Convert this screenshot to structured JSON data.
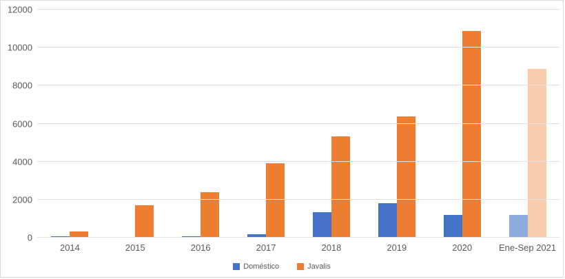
{
  "chart_data": {
    "type": "bar",
    "title": "",
    "categories": [
      "2014",
      "2015",
      "2016",
      "2017",
      "2018",
      "2019",
      "2020",
      "Ene-Sep 2021"
    ],
    "series": [
      {
        "name": "Doméstico",
        "color": "#4472C4",
        "muted_color": "#8FAADC",
        "values": [
          70,
          50,
          90,
          170,
          1340,
          1810,
          1180,
          1190
        ]
      },
      {
        "name": "Javalis",
        "color": "#ED7D31",
        "muted_color": "#F8CBAD",
        "values": [
          340,
          1690,
          2390,
          3930,
          5340,
          6370,
          10890,
          8870
        ]
      }
    ],
    "muted_category": "Ene-Sep 2021",
    "xlabel": "",
    "ylabel": "",
    "y_axis": {
      "min": 0,
      "max": 12000,
      "step": 2000,
      "tick_labels": [
        "0",
        "2000",
        "4000",
        "6000",
        "8000",
        "10000",
        "12000"
      ]
    },
    "grid": true,
    "legend_position": "bottom"
  },
  "colors": {
    "gridline": "#E2E2E2",
    "axis_text": "#595959",
    "chart_border": "#D9D9D9",
    "background": "#FFFFFF"
  }
}
